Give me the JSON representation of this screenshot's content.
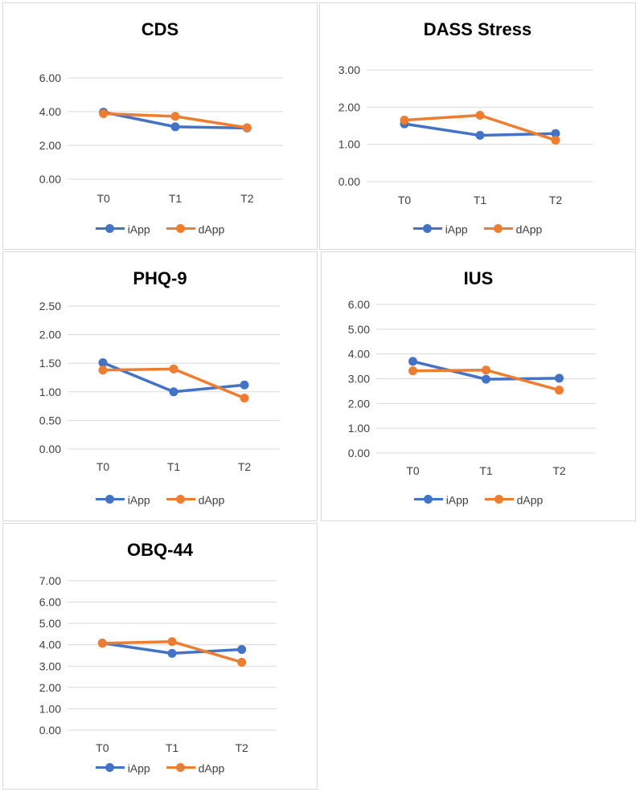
{
  "colors": {
    "iApp": "#4472C4",
    "dApp": "#ED7D31",
    "grid": "#d9d9d9",
    "axis_text": "#404040"
  },
  "chart_data": [
    {
      "type": "line",
      "title": "CDS",
      "categories": [
        "T0",
        "T1",
        "T2"
      ],
      "yticks": [
        "0.00",
        "2.00",
        "4.00",
        "6.00"
      ],
      "ylim": [
        0,
        6
      ],
      "grid": true,
      "legend_position": "bottom",
      "series": [
        {
          "name": "iApp",
          "values": [
            3.97,
            3.1,
            3.03
          ]
        },
        {
          "name": "dApp",
          "values": [
            3.88,
            3.72,
            3.05
          ]
        }
      ]
    },
    {
      "type": "line",
      "title": "DASS Stress",
      "categories": [
        "T0",
        "T1",
        "T2"
      ],
      "yticks": [
        "0.00",
        "1.00",
        "2.00",
        "3.00"
      ],
      "ylim": [
        0,
        3
      ],
      "grid": true,
      "legend_position": "bottom",
      "series": [
        {
          "name": "iApp",
          "values": [
            1.55,
            1.24,
            1.29
          ]
        },
        {
          "name": "dApp",
          "values": [
            1.65,
            1.78,
            1.11
          ]
        }
      ]
    },
    {
      "type": "line",
      "title": "PHQ-9",
      "categories": [
        "T0",
        "T1",
        "T2"
      ],
      "yticks": [
        "0.00",
        "0.50",
        "1.00",
        "1.50",
        "2.00",
        "2.50"
      ],
      "ylim": [
        0,
        2.5
      ],
      "grid": true,
      "legend_position": "bottom",
      "series": [
        {
          "name": "iApp",
          "values": [
            1.51,
            1.0,
            1.12
          ]
        },
        {
          "name": "dApp",
          "values": [
            1.38,
            1.4,
            0.89
          ]
        }
      ]
    },
    {
      "type": "line",
      "title": "IUS",
      "categories": [
        "T0",
        "T1",
        "T2"
      ],
      "yticks": [
        "0.00",
        "1.00",
        "2.00",
        "3.00",
        "4.00",
        "5.00",
        "6.00"
      ],
      "ylim": [
        0,
        6
      ],
      "grid": true,
      "legend_position": "bottom",
      "series": [
        {
          "name": "iApp",
          "values": [
            3.7,
            2.98,
            3.02
          ]
        },
        {
          "name": "dApp",
          "values": [
            3.32,
            3.35,
            2.54
          ]
        }
      ]
    },
    {
      "type": "line",
      "title": "OBQ-44",
      "categories": [
        "T0",
        "T1",
        "T2"
      ],
      "yticks": [
        "0.00",
        "1.00",
        "2.00",
        "3.00",
        "4.00",
        "5.00",
        "6.00",
        "7.00"
      ],
      "ylim": [
        0,
        7
      ],
      "grid": true,
      "legend_position": "bottom",
      "series": [
        {
          "name": "iApp",
          "values": [
            4.08,
            3.6,
            3.78
          ]
        },
        {
          "name": "dApp",
          "values": [
            4.07,
            4.15,
            3.18
          ]
        }
      ]
    }
  ]
}
